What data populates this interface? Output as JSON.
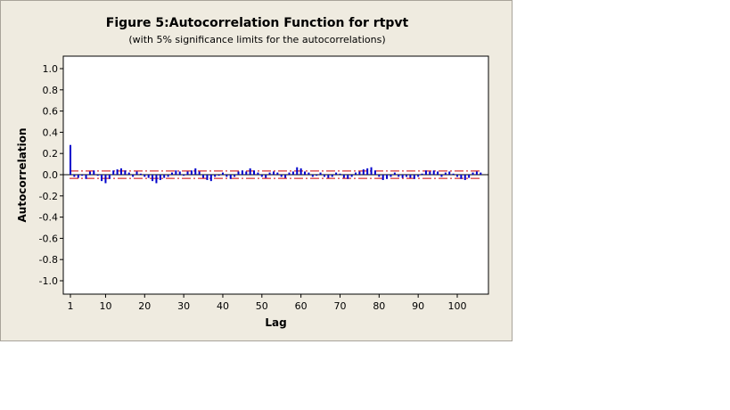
{
  "chart_data": {
    "type": "bar",
    "title": "Figure 5:Autocorrelation Function for rtpvt",
    "subtitle": "(with 5% significance limits for the autocorrelations)",
    "xlabel": "Lag",
    "ylabel": "Autocorrelation",
    "xlim": [
      0,
      108
    ],
    "ylim": [
      -1.1,
      1.1
    ],
    "x_ticks": [
      "1",
      "10",
      "20",
      "30",
      "40",
      "50",
      "60",
      "70",
      "80",
      "90",
      "100"
    ],
    "y_ticks": [
      "1.0",
      "0.8",
      "0.6",
      "0.4",
      "0.2",
      "0.0",
      "-0.2",
      "-0.4",
      "-0.6",
      "-0.8",
      "-1.0"
    ],
    "significance_limit": 0.035,
    "lags": [
      1,
      2,
      3,
      4,
      5,
      6,
      7,
      8,
      9,
      10,
      11,
      12,
      13,
      14,
      15,
      16,
      17,
      18,
      19,
      20,
      21,
      22,
      23,
      24,
      25,
      26,
      27,
      28,
      29,
      30,
      31,
      32,
      33,
      34,
      35,
      36,
      37,
      38,
      39,
      40,
      41,
      42,
      43,
      44,
      45,
      46,
      47,
      48,
      49,
      50,
      51,
      52,
      53,
      54,
      55,
      56,
      57,
      58,
      59,
      60,
      61,
      62,
      63,
      64,
      65,
      66,
      67,
      68,
      69,
      70,
      71,
      72,
      73,
      74,
      75,
      76,
      77,
      78,
      79,
      80,
      81,
      82,
      83,
      84,
      85,
      86,
      87,
      88,
      89,
      90,
      91,
      92,
      93,
      94,
      95,
      96,
      97,
      98,
      99,
      100,
      101,
      102,
      103,
      104,
      105,
      106
    ],
    "values": [
      0.28,
      -0.02,
      -0.03,
      -0.01,
      -0.04,
      0.03,
      0.04,
      -0.01,
      -0.06,
      -0.08,
      -0.04,
      0.04,
      0.05,
      0.06,
      0.04,
      0.02,
      -0.02,
      0.03,
      0.01,
      -0.02,
      -0.03,
      -0.06,
      -0.08,
      -0.05,
      -0.03,
      -0.02,
      0.02,
      0.04,
      0.03,
      -0.01,
      0.03,
      0.04,
      0.06,
      0.03,
      -0.03,
      -0.05,
      -0.06,
      -0.02,
      -0.01,
      0.02,
      -0.02,
      -0.04,
      -0.02,
      0.03,
      0.04,
      0.03,
      0.06,
      0.04,
      0.02,
      -0.02,
      -0.03,
      0.02,
      0.03,
      0.02,
      -0.02,
      -0.03,
      0.02,
      0.03,
      0.07,
      0.06,
      0.03,
      0.02,
      -0.02,
      -0.01,
      0.02,
      -0.02,
      -0.03,
      -0.02,
      0.02,
      0.01,
      -0.03,
      -0.04,
      -0.02,
      0.02,
      0.03,
      0.05,
      0.06,
      0.07,
      0.04,
      -0.02,
      -0.05,
      -0.04,
      -0.02,
      0.02,
      -0.02,
      -0.03,
      -0.02,
      -0.03,
      -0.04,
      -0.02,
      0.01,
      0.04,
      0.03,
      0.04,
      0.03,
      -0.02,
      0.02,
      0.03,
      0.01,
      -0.02,
      -0.04,
      -0.05,
      -0.03,
      0.02,
      0.03,
      0.02
    ],
    "bar_color": "#0000cc",
    "limit_color": "#cc0000",
    "plot_background": "#ffffff",
    "panel_background": "#efebe0",
    "grid": false,
    "legend": "none"
  }
}
